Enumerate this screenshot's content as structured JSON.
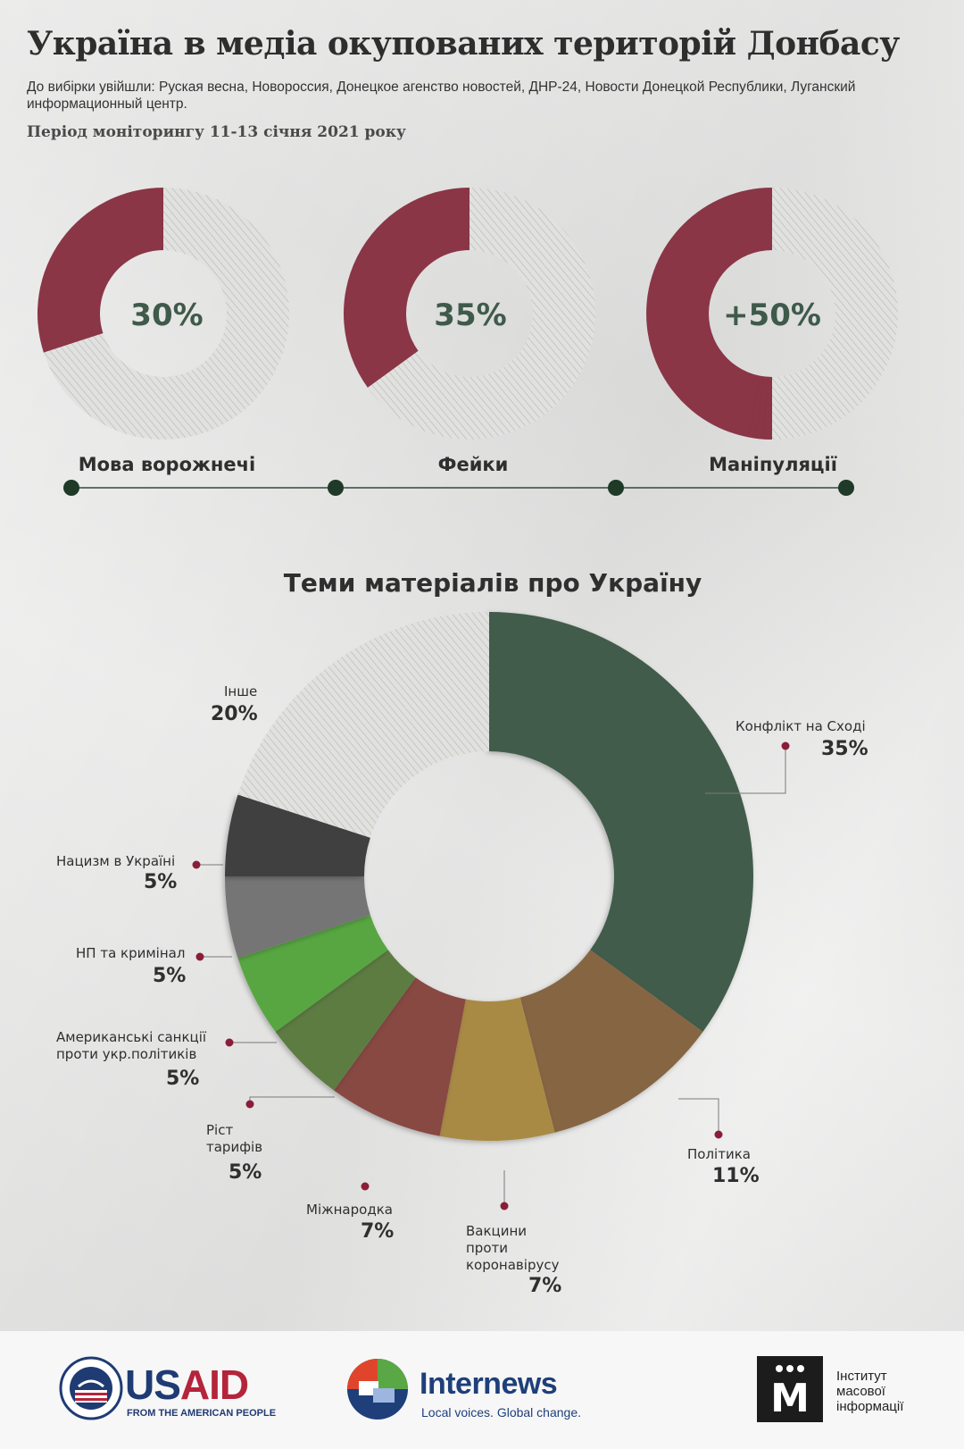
{
  "header": {
    "title": "Україна в медіа окупованих територій Донбасу",
    "subtitle": "До вибірки увійшли: Руская весна, Новороссия, Донецкое агенство новостей, ДНР-24, Новости Донецкой Республики, Луганский информационный центр.",
    "period": "Період моніторингу 11-13 січня 2021 року"
  },
  "colors": {
    "accent_red": "#8a3646",
    "hatch_light": "#dcdcdc",
    "timeline": "#2f4a38",
    "pct_text": "#3f5a4a"
  },
  "chart_data": [
    {
      "type": "pie",
      "title": "",
      "donuts": [
        {
          "label": "Мова ворожнечі",
          "value_text": "30%",
          "value": 30
        },
        {
          "label": "Фейки",
          "value_text": "35%",
          "value": 35
        },
        {
          "label": "Маніпуляції",
          "value_text": "+50%",
          "value": 50
        }
      ]
    },
    {
      "type": "pie",
      "title": "Теми матеріалів про Україну",
      "slices": [
        {
          "name": "Конфлікт на Сході",
          "value": 35,
          "value_text": "35%",
          "color": "#425b4c"
        },
        {
          "name": "Політика",
          "value": 11,
          "value_text": "11%",
          "color": "#866542"
        },
        {
          "name": "Вакцини проти коронавірусу",
          "value": 7,
          "value_text": "7%",
          "color": "#a98a44"
        },
        {
          "name": "Міжнародка",
          "value": 7,
          "value_text": "7%",
          "color": "#874843"
        },
        {
          "name": "Ріст тарифів",
          "value": 5,
          "value_text": "5%",
          "color": "#5d7b43"
        },
        {
          "name": "Американські санкції проти укр.політиків",
          "value": 5,
          "value_text": "5%",
          "color": "#58a642"
        },
        {
          "name": "НП та кримінал",
          "value": 5,
          "value_text": "5%",
          "color": "#757575"
        },
        {
          "name": "Нацизм в Україні",
          "value": 5,
          "value_text": "5%",
          "color": "#3f3f3f"
        },
        {
          "name": "Інше",
          "value": 20,
          "value_text": "20%",
          "color": "hatched"
        }
      ]
    }
  ],
  "labels": {
    "politics_lines": [
      "Політика"
    ],
    "vaccines_lines": [
      "Вакцини",
      "проти",
      "коронавірусу"
    ],
    "sanctions_lines": [
      "Американські санкції",
      "проти укр.політиків"
    ],
    "tariffs_lines": [
      "Ріст",
      "тарифів"
    ]
  },
  "footer": {
    "usaid_word_1": "US",
    "usaid_word_2": "AID",
    "usaid_tag": "FROM THE AMERICAN PEOPLE",
    "internews_word": "Internews",
    "internews_tag": "Local voices. Global change.",
    "imi_letter": "М",
    "imi_lines": [
      "Інститут",
      "масової",
      "інформації"
    ]
  }
}
